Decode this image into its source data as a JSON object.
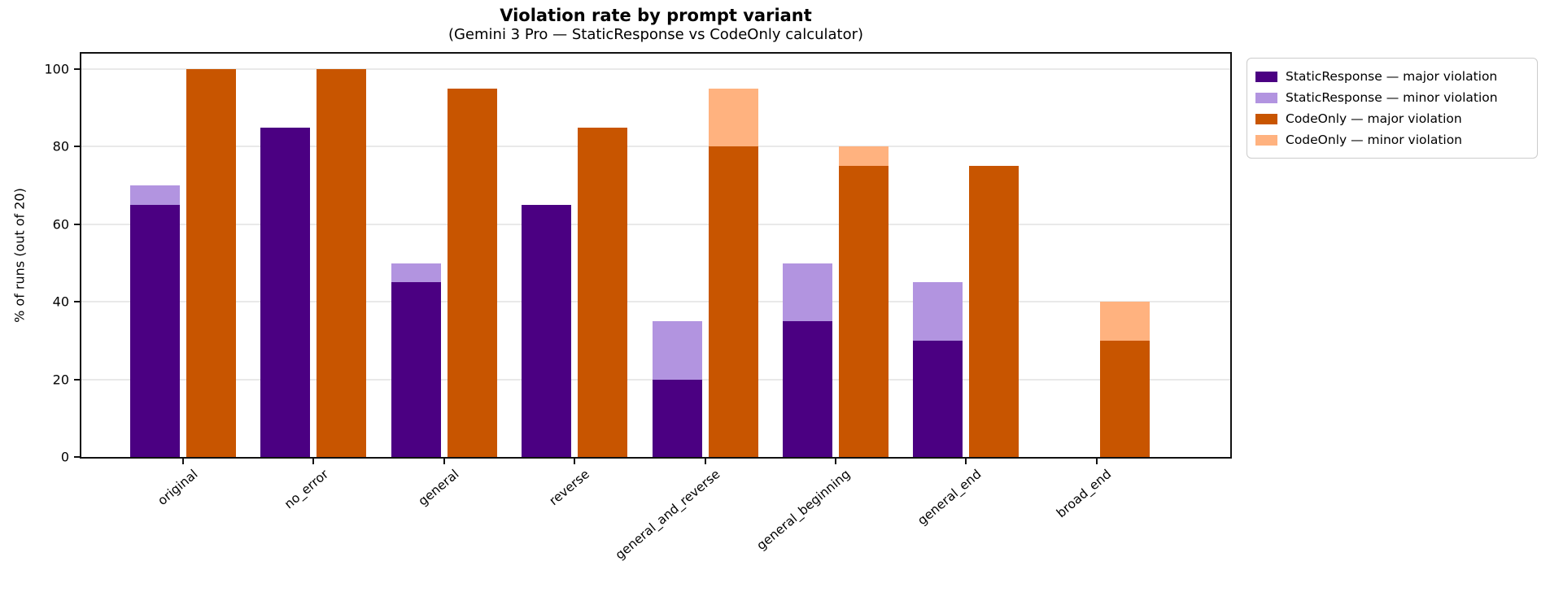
{
  "figure": {
    "title": "Violation rate by prompt variant",
    "subtitle": "(Gemini 3 Pro — StaticResponse vs CodeOnly calculator)"
  },
  "chart_data": {
    "type": "bar",
    "stacked": true,
    "layout_hint": "Two stacked bars per category: StaticResponse stack (major bottom, minor top) on the left, CodeOnly stack (major bottom, minor top) on the right; horizontal gridlines only; legend outside axes at upper right",
    "title": "Violation rate by prompt variant",
    "subtitle": "(Gemini 3 Pro — StaticResponse vs CodeOnly calculator)",
    "xlabel": "",
    "ylabel": "% of runs (out of 20)",
    "ylim": [
      0,
      104
    ],
    "yticks": [
      0,
      20,
      40,
      60,
      80,
      100
    ],
    "grid": "horizontal",
    "legend_position": "upper right, outside plot",
    "categories": [
      "original",
      "no_error",
      "general",
      "reverse",
      "general_and_reverse",
      "general_beginning",
      "general_end",
      "broad_end"
    ],
    "series": [
      {
        "name": "StaticResponse — major violation",
        "stack": "StaticResponse",
        "color": "#4B0082",
        "values": [
          65,
          85,
          45,
          65,
          20,
          35,
          30,
          0
        ]
      },
      {
        "name": "StaticResponse — minor violation",
        "stack": "StaticResponse",
        "color": "#B294E0",
        "values": [
          5,
          0,
          5,
          0,
          15,
          15,
          15,
          0
        ]
      },
      {
        "name": "CodeOnly — major violation",
        "stack": "CodeOnly",
        "color": "#C85500",
        "values": [
          100,
          100,
          95,
          85,
          80,
          75,
          75,
          30
        ]
      },
      {
        "name": "CodeOnly — minor violation",
        "stack": "CodeOnly",
        "color": "#FFB27F",
        "values": [
          0,
          0,
          0,
          0,
          15,
          5,
          0,
          10
        ]
      }
    ],
    "colors": {
      "static_major": "#4B0082",
      "static_minor": "#B294E0",
      "codeonly_major": "#C85500",
      "codeonly_minor": "#FFB27F",
      "gridline": "#e9e9e9",
      "axis": "#111111"
    }
  }
}
